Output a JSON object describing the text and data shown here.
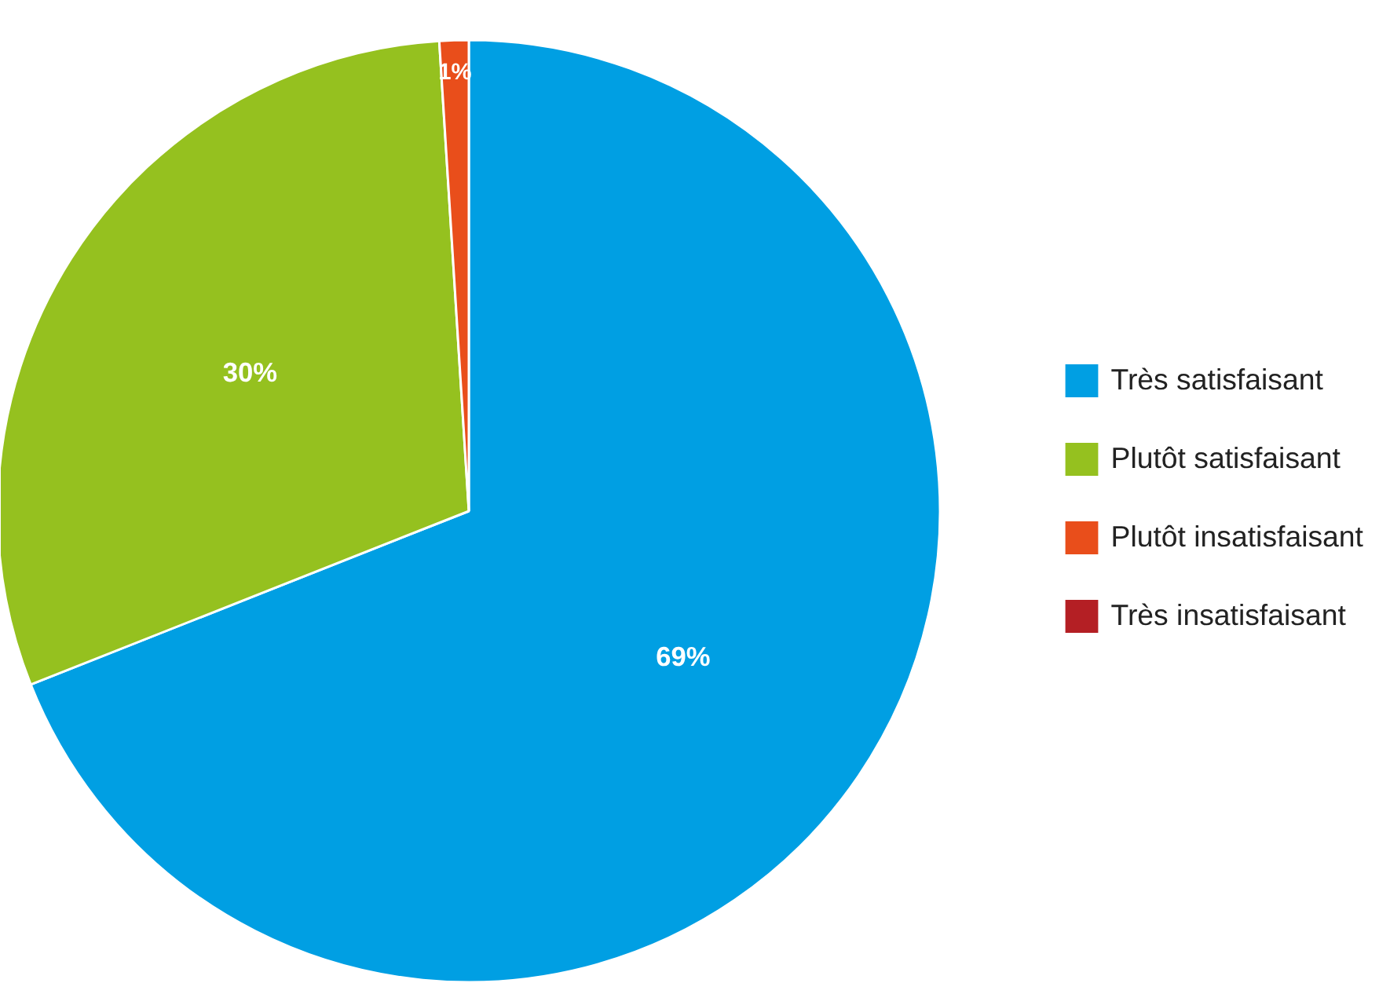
{
  "chart_data": {
    "type": "pie",
    "categories": [
      "Très satisfaisant",
      "Plutôt satisfaisant",
      "Plutôt insatisfaisant",
      "Très insatisfaisant"
    ],
    "values": [
      69,
      30,
      1,
      0
    ],
    "colors": [
      "#009fe3",
      "#95c11f",
      "#e94e1b",
      "#b41f24"
    ],
    "value_labels": [
      "69%",
      "30%",
      "1%",
      null
    ],
    "legend": "right"
  }
}
